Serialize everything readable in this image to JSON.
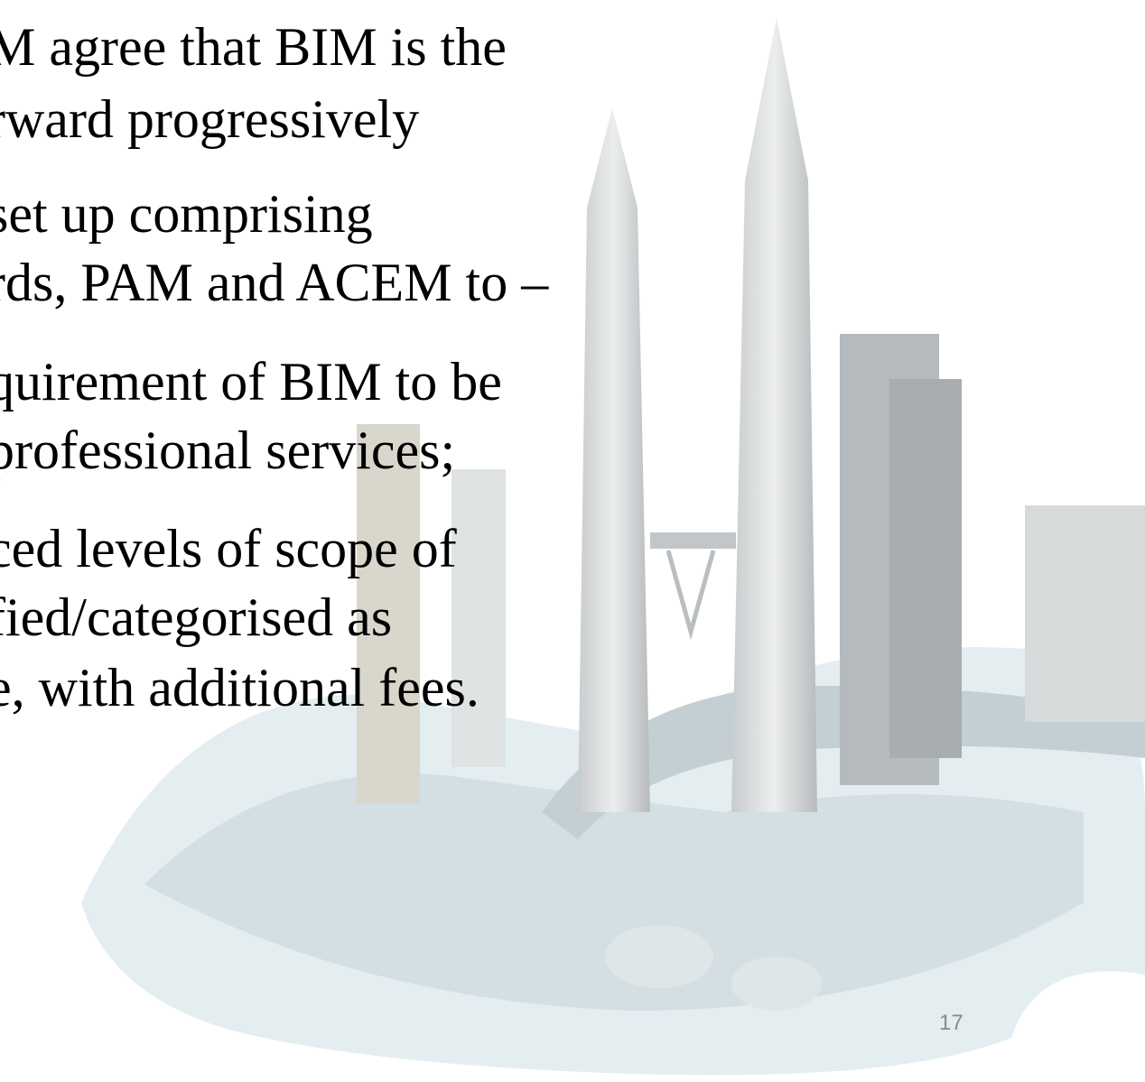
{
  "lines": [
    "M agree that BIM is the",
    "rward progressively",
    "set up comprising",
    "rds, PAM and ACEM to –",
    "quirement of BIM to be",
    "professional services;",
    "ced levels of scope of",
    "fied/categorised as",
    "e, with additional fees."
  ],
  "page_number": "17"
}
